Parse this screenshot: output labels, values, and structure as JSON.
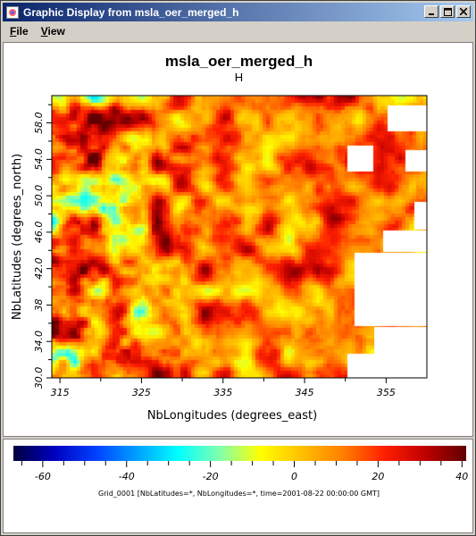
{
  "window": {
    "title": "Graphic Display from msla_oer_merged_h",
    "controls": [
      "minimize-icon",
      "maximize-icon",
      "close-icon"
    ]
  },
  "menu": [
    {
      "label": "File",
      "mnemonic": "F",
      "rest": "ile"
    },
    {
      "label": "View",
      "mnemonic": "V",
      "rest": "iew"
    }
  ],
  "plot": {
    "title": "msla_oer_merged_h",
    "subtitle": "H",
    "xlabel": "NbLongitudes (degrees_east)",
    "ylabel": "NbLatitudes (degrees_north)"
  },
  "chart_data": {
    "type": "heatmap",
    "title": "msla_oer_merged_h",
    "subtitle": "H",
    "xlabel": "NbLongitudes (degrees_east)",
    "ylabel": "NbLatitudes (degrees_north)",
    "x_ticks": [
      315,
      325,
      335,
      345,
      355
    ],
    "y_ticks": [
      30.0,
      34.0,
      38.0,
      42.0,
      46.0,
      50.0,
      54.0,
      58.0
    ],
    "y_tick_labels": [
      "30.0",
      "34.0",
      "38",
      "42.0",
      "46.0",
      "50.0",
      "54.0",
      "58.0"
    ],
    "xlim": [
      314,
      360
    ],
    "ylim": [
      30,
      61
    ],
    "colorbar": {
      "ticks": [
        -60,
        -40,
        -20,
        0,
        20,
        40
      ],
      "range": [
        -67,
        41
      ],
      "colors": [
        "#000040",
        "#0000c0",
        "#0040ff",
        "#00a0ff",
        "#00ffff",
        "#80ffb0",
        "#ffff00",
        "#ffc000",
        "#ff8000",
        "#ff2000",
        "#c00000",
        "#600000"
      ]
    },
    "masked_land_color": "#ffffff"
  },
  "legend": {
    "ticks": [
      "-60",
      "-40",
      "-20",
      "0",
      "20",
      "40"
    ],
    "caption": "Grid_0001 [NbLatitudes=*, NbLongitudes=*, time=2001-08-22 00:00:00 GMT]"
  }
}
